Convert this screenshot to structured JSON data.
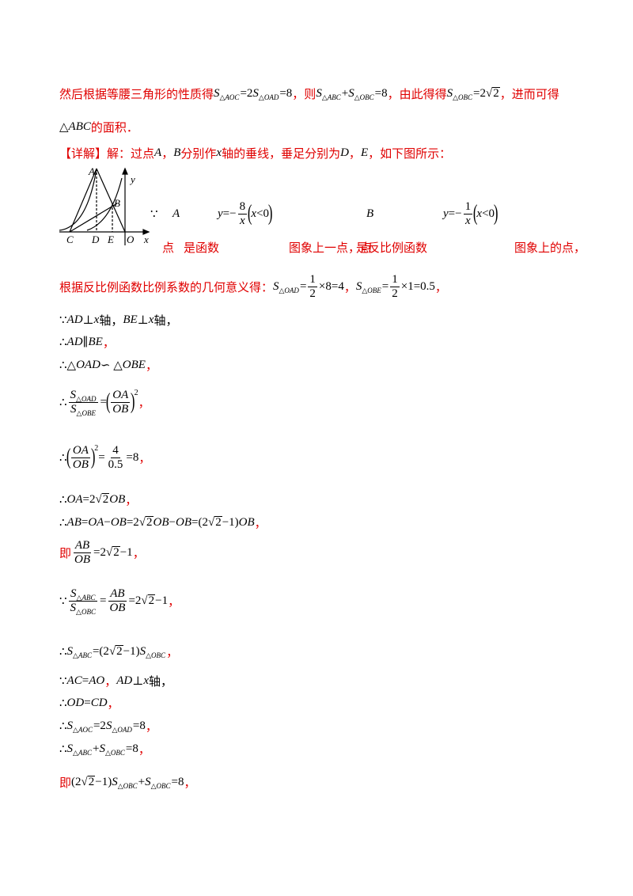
{
  "figure": {
    "labels": [
      "A",
      "B",
      "y",
      "C",
      "D",
      "E",
      "O",
      "x"
    ]
  },
  "given": {
    "top": [
      [
        {
          "n": "∵"
        }
      ],
      [
        {
          "m": "A"
        }
      ],
      [
        {
          "m": "y"
        },
        {
          "n": "=−"
        },
        {
          "f": [
            [
              {
                "n": "8"
              }
            ],
            [
              {
                "m": "x"
              }
            ]
          ]
        },
        {
          "b": "("
        },
        {
          "m": "x"
        },
        {
          "n": "<0"
        },
        {
          "b": ")"
        }
      ],
      [
        {
          "m": "B"
        }
      ],
      [
        {
          "m": "y"
        },
        {
          "n": "=−"
        },
        {
          "f": [
            [
              {
                "n": "1"
              }
            ],
            [
              {
                "m": "x"
              }
            ]
          ]
        },
        {
          "b": "("
        },
        {
          "m": "x"
        },
        {
          "n": "<0"
        },
        {
          "b": ")"
        }
      ]
    ],
    "bottom": [
      "点",
      "是函数",
      "图象上一点，点",
      "是反比例函数",
      "图象上的点，"
    ]
  },
  "lines": [
    {
      "parts": [
        "然后根据等腰三角形的性质得",
        {
          "m": "S"
        },
        {
          "s": "△AOC"
        },
        {
          "n": "=2"
        },
        {
          "m": "S"
        },
        {
          "s": "△OAD"
        },
        {
          "n": "=8"
        },
        "，则",
        {
          "m": "S"
        },
        {
          "s": "△ABC"
        },
        {
          "n": "+"
        },
        {
          "m": "S"
        },
        {
          "s": "△OBC"
        },
        {
          "n": "=8"
        },
        "，由此得得",
        {
          "m": "S"
        },
        {
          "s": "△OBC"
        },
        {
          "n": "=2"
        },
        {
          "r": "2"
        },
        "，进而可得"
      ]
    },
    {
      "parts": [
        {
          "n": "△"
        },
        {
          "m": "ABC"
        },
        "的面积．"
      ]
    },
    {
      "parts": [
        "【详解】解：过点",
        {
          "m": "A"
        },
        "，",
        {
          "m": "B"
        },
        "分别作",
        {
          "m": "x"
        },
        "轴的垂线，垂足分别为",
        {
          "m": "D"
        },
        "，",
        {
          "m": "E"
        },
        "，如下图所示："
      ]
    },
    {
      "parts": [
        "根据反比例函数比例系数的几何意义得：",
        {
          "m": "S"
        },
        {
          "s": "△OAD"
        },
        {
          "n": "="
        },
        {
          "f": [
            [
              {
                "n": "1"
              }
            ],
            [
              {
                "n": "2"
              }
            ]
          ]
        },
        {
          "n": "×8=4"
        },
        "，",
        {
          "m": "S"
        },
        {
          "s": "△OBE"
        },
        {
          "n": "="
        },
        {
          "f": [
            [
              {
                "n": "1"
              }
            ],
            [
              {
                "n": "2"
              }
            ]
          ]
        },
        {
          "n": "×1=0.5"
        },
        "，"
      ]
    },
    {
      "parts": [
        {
          "n": "∵"
        },
        {
          "m": "AD"
        },
        {
          "n": " ⊥ "
        },
        {
          "m": "x"
        },
        {
          "n": "轴，"
        },
        {
          "m": "BE"
        },
        {
          "n": " ⊥ "
        },
        {
          "m": "x"
        },
        {
          "n": "轴，"
        }
      ]
    },
    {
      "parts": [
        {
          "n": "∴"
        },
        {
          "m": "AD"
        },
        {
          "n": " ∥ "
        },
        {
          "m": "BE"
        },
        "，"
      ]
    },
    {
      "parts": [
        {
          "n": "∴△"
        },
        {
          "m": "OAD"
        },
        {
          "n": " ∽ △"
        },
        {
          "m": "OBE"
        },
        "，"
      ]
    },
    {
      "parts": [
        {
          "n": "∴ "
        },
        {
          "f": [
            [
              {
                "m": "S"
              },
              {
                "s": "△OAD"
              }
            ],
            [
              {
                "m": "S"
              },
              {
                "s": "△OBE"
              }
            ]
          ]
        },
        {
          "n": "="
        },
        {
          "b": "("
        },
        {
          "f": [
            [
              {
                "m": "OA"
              }
            ],
            [
              {
                "m": "OB"
              }
            ]
          ]
        },
        {
          "b": ")"
        },
        {
          "sup": "2"
        },
        "，"
      ]
    },
    {
      "parts": [
        {
          "n": "∴ "
        },
        {
          "b": "("
        },
        {
          "f": [
            [
              {
                "m": "OA"
              }
            ],
            [
              {
                "m": "OB"
              }
            ]
          ]
        },
        {
          "b": ")"
        },
        {
          "sup": "2"
        },
        {
          "n": "="
        },
        {
          "f": [
            [
              {
                "n": "4"
              }
            ],
            [
              {
                "n": "0.5"
              }
            ]
          ]
        },
        {
          "n": "=8"
        },
        "，"
      ]
    },
    {
      "parts": [
        {
          "n": "∴"
        },
        {
          "m": "OA"
        },
        {
          "n": "=2"
        },
        {
          "r": "2"
        },
        {
          "m": "OB"
        },
        "，"
      ]
    },
    {
      "parts": [
        {
          "n": "∴"
        },
        {
          "m": "AB"
        },
        {
          "n": "="
        },
        {
          "m": "OA"
        },
        {
          "n": "−"
        },
        {
          "m": "OB"
        },
        {
          "n": "=2"
        },
        {
          "r": "2"
        },
        {
          "m": "OB"
        },
        {
          "n": "−"
        },
        {
          "m": "OB"
        },
        {
          "n": "=(2"
        },
        {
          "r": "2"
        },
        {
          "n": "−1)"
        },
        {
          "m": "OB"
        },
        "，"
      ]
    },
    {
      "parts": [
        "即",
        {
          "f": [
            [
              {
                "m": "AB"
              }
            ],
            [
              {
                "m": "OB"
              }
            ]
          ]
        },
        {
          "n": "=2"
        },
        {
          "r": "2"
        },
        {
          "n": "−1"
        },
        "，"
      ]
    },
    {
      "parts": [
        {
          "n": "∵ "
        },
        {
          "f": [
            [
              {
                "m": "S"
              },
              {
                "s": "△ABC"
              }
            ],
            [
              {
                "m": "S"
              },
              {
                "s": "△OBC"
              }
            ]
          ]
        },
        {
          "n": "="
        },
        {
          "f": [
            [
              {
                "m": "AB"
              }
            ],
            [
              {
                "m": "OB"
              }
            ]
          ]
        },
        {
          "n": "=2"
        },
        {
          "r": "2"
        },
        {
          "n": "−1"
        },
        "，"
      ]
    },
    {
      "parts": [
        {
          "n": "∴"
        },
        {
          "m": "S"
        },
        {
          "s": "△ABC"
        },
        {
          "n": "=(2"
        },
        {
          "r": "2"
        },
        {
          "n": "−1)"
        },
        {
          "m": "S"
        },
        {
          "s": "△OBC"
        },
        "，"
      ]
    },
    {
      "parts": [
        {
          "n": "∵"
        },
        {
          "m": "AC"
        },
        {
          "n": "="
        },
        {
          "m": "AO"
        },
        "，",
        {
          "m": "AD"
        },
        {
          "n": " ⊥ "
        },
        {
          "m": "x"
        },
        {
          "n": "轴，"
        }
      ]
    },
    {
      "parts": [
        {
          "n": "∴"
        },
        {
          "m": "OD"
        },
        {
          "n": "="
        },
        {
          "m": "CD"
        },
        "，"
      ]
    },
    {
      "parts": [
        {
          "n": "∴"
        },
        {
          "m": "S"
        },
        {
          "s": "△AOC"
        },
        {
          "n": "=2"
        },
        {
          "m": "S"
        },
        {
          "s": "△OAD"
        },
        {
          "n": "=8"
        },
        "，"
      ]
    },
    {
      "parts": [
        {
          "n": "∴"
        },
        {
          "m": "S"
        },
        {
          "s": "△ABC"
        },
        {
          "n": "+"
        },
        {
          "m": "S"
        },
        {
          "s": "△OBC"
        },
        {
          "n": "=8"
        },
        "，"
      ]
    },
    {
      "parts": [
        "即",
        {
          "n": "(2"
        },
        {
          "r": "2"
        },
        {
          "n": "−1)"
        },
        {
          "m": "S"
        },
        {
          "s": "△OBC"
        },
        {
          "n": "+"
        },
        {
          "m": "S"
        },
        {
          "s": "△OBC"
        },
        {
          "n": "=8"
        },
        "，"
      ]
    }
  ]
}
